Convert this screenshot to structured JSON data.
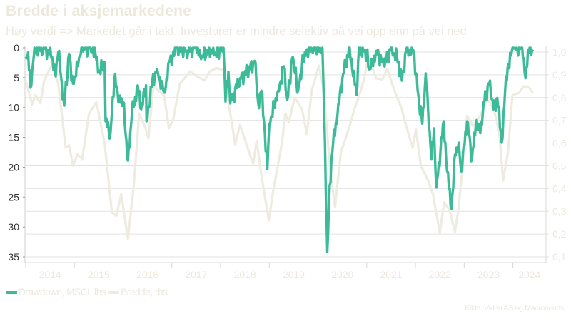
{
  "title": "Bredde i aksjemarkedene",
  "subtitle": "Høy verdi => Markedet går i takt. Investorer er mindre selektiv på vei opp enn på vei ned",
  "source": "Kilde: Viden AS og Macrobonds",
  "colors": {
    "drawdown": "#3dba98",
    "breadth": "#eeebe0",
    "text_light": "#ece8dc",
    "grid": "#e2e2e2"
  },
  "chart_data": {
    "type": "line",
    "title": "Bredde i aksjemarkedene",
    "xlim": [
      2014.0,
      2024.68
    ],
    "x_tick_labels": [
      "2014",
      "2015",
      "2016",
      "2017",
      "2018",
      "2019",
      "2020",
      "2021",
      "2022",
      "2023",
      "2024"
    ],
    "left_axis": {
      "label": "Drawdown, MSCI, lhs",
      "ylim": [
        0,
        35
      ],
      "inverted": true,
      "ticks": [
        "0",
        "5",
        "10",
        "15",
        "20",
        "25",
        "30",
        "35"
      ]
    },
    "right_axis": {
      "label": "Bredde, rhs",
      "ylim": [
        0.1,
        1.0
      ],
      "ticks": [
        "1,0",
        "0,9",
        "0,8",
        "0,7",
        "0,6",
        "0,5",
        "0,4",
        "0,3",
        "0,2",
        "0,1"
      ]
    },
    "grid": true,
    "legend": {
      "placement": "bottom-left",
      "entries": [
        "Drawdown, MSCI, lhs",
        "Bredde, rhs"
      ]
    },
    "series": [
      {
        "name": "Drawdown, MSCI, lhs",
        "axis": "left",
        "points": [
          [
            2014.0,
            1.5
          ],
          [
            2014.05,
            0.8
          ],
          [
            2014.1,
            6.7
          ],
          [
            2014.18,
            0
          ],
          [
            2014.3,
            0.5
          ],
          [
            2014.4,
            0
          ],
          [
            2014.54,
            1.5
          ],
          [
            2014.6,
            4.3
          ],
          [
            2014.67,
            0.7
          ],
          [
            2014.79,
            9.7
          ],
          [
            2014.89,
            1
          ],
          [
            2014.97,
            6
          ],
          [
            2015.08,
            2.7
          ],
          [
            2015.16,
            0
          ],
          [
            2015.38,
            0
          ],
          [
            2015.52,
            4
          ],
          [
            2015.62,
            2.4
          ],
          [
            2015.64,
            12.3
          ],
          [
            2015.74,
            14.3
          ],
          [
            2015.82,
            5.1
          ],
          [
            2015.92,
            8.4
          ],
          [
            2016.0,
            9.1
          ],
          [
            2016.1,
            18.9
          ],
          [
            2016.18,
            11.1
          ],
          [
            2016.3,
            6.3
          ],
          [
            2016.37,
            10.3
          ],
          [
            2016.47,
            6.3
          ],
          [
            2016.48,
            12.3
          ],
          [
            2016.6,
            5.5
          ],
          [
            2016.7,
            3.6
          ],
          [
            2016.84,
            7.5
          ],
          [
            2016.96,
            2.2
          ],
          [
            2017.1,
            0
          ],
          [
            2017.3,
            0.5
          ],
          [
            2017.5,
            0
          ],
          [
            2017.6,
            1.9
          ],
          [
            2017.75,
            0.3
          ],
          [
            2017.9,
            0.8
          ],
          [
            2018.06,
            0
          ],
          [
            2018.1,
            9
          ],
          [
            2018.16,
            4
          ],
          [
            2018.2,
            9.3
          ],
          [
            2018.4,
            5.1
          ],
          [
            2018.6,
            3.6
          ],
          [
            2018.7,
            2.2
          ],
          [
            2018.77,
            9.1
          ],
          [
            2018.84,
            7.2
          ],
          [
            2018.89,
            12.3
          ],
          [
            2018.96,
            20.3
          ],
          [
            2019.0,
            12.7
          ],
          [
            2019.18,
            7.2
          ],
          [
            2019.3,
            3.1
          ],
          [
            2019.37,
            8.7
          ],
          [
            2019.48,
            1.5
          ],
          [
            2019.59,
            7.2
          ],
          [
            2019.7,
            1.9
          ],
          [
            2019.81,
            0
          ],
          [
            2020.09,
            0
          ],
          [
            2020.13,
            12
          ],
          [
            2020.19,
            34.2
          ],
          [
            2020.24,
            23
          ],
          [
            2020.31,
            15.9
          ],
          [
            2020.4,
            11.1
          ],
          [
            2020.5,
            5.1
          ],
          [
            2020.65,
            0
          ],
          [
            2020.79,
            7.9
          ],
          [
            2020.84,
            0
          ],
          [
            2021.0,
            1
          ],
          [
            2021.06,
            3.6
          ],
          [
            2021.2,
            0.5
          ],
          [
            2021.35,
            3
          ],
          [
            2021.5,
            0
          ],
          [
            2021.62,
            1.5
          ],
          [
            2021.72,
            5.5
          ],
          [
            2021.82,
            0
          ],
          [
            2021.96,
            0.5
          ],
          [
            2022.06,
            8
          ],
          [
            2022.14,
            12.7
          ],
          [
            2022.21,
            4.3
          ],
          [
            2022.29,
            13.9
          ],
          [
            2022.33,
            18.6
          ],
          [
            2022.38,
            13.5
          ],
          [
            2022.43,
            23.4
          ],
          [
            2022.58,
            12.3
          ],
          [
            2022.65,
            20.7
          ],
          [
            2022.74,
            27
          ],
          [
            2022.81,
            17.9
          ],
          [
            2022.89,
            15.9
          ],
          [
            2022.94,
            20.7
          ],
          [
            2023.06,
            12.3
          ],
          [
            2023.16,
            18.6
          ],
          [
            2023.24,
            12.7
          ],
          [
            2023.33,
            14.3
          ],
          [
            2023.4,
            9.1
          ],
          [
            2023.53,
            5.5
          ],
          [
            2023.6,
            10.3
          ],
          [
            2023.68,
            8.4
          ],
          [
            2023.77,
            15.9
          ],
          [
            2023.84,
            7.2
          ],
          [
            2023.91,
            2.7
          ],
          [
            2024.01,
            0
          ],
          [
            2024.19,
            0
          ],
          [
            2024.26,
            5.1
          ],
          [
            2024.31,
            0.3
          ],
          [
            2024.41,
            0.3
          ]
        ]
      },
      {
        "name": "Bredde, rhs",
        "axis": "right",
        "points": [
          [
            2014.0,
            0.875
          ],
          [
            2014.13,
            0.77
          ],
          [
            2014.2,
            0.81
          ],
          [
            2014.3,
            0.775
          ],
          [
            2014.38,
            0.875
          ],
          [
            2014.47,
            0.915
          ],
          [
            2014.54,
            0.945
          ],
          [
            2014.67,
            0.86
          ],
          [
            2014.82,
            0.58
          ],
          [
            2014.89,
            0.59
          ],
          [
            2014.97,
            0.5
          ],
          [
            2015.06,
            0.55
          ],
          [
            2015.16,
            0.53
          ],
          [
            2015.3,
            0.73
          ],
          [
            2015.45,
            0.78
          ],
          [
            2015.62,
            0.6
          ],
          [
            2015.77,
            0.295
          ],
          [
            2015.86,
            0.28
          ],
          [
            2015.96,
            0.375
          ],
          [
            2016.1,
            0.18
          ],
          [
            2016.22,
            0.415
          ],
          [
            2016.33,
            0.73
          ],
          [
            2016.45,
            0.67
          ],
          [
            2016.52,
            0.62
          ],
          [
            2016.62,
            0.85
          ],
          [
            2016.84,
            0.81
          ],
          [
            2016.94,
            0.665
          ],
          [
            2017.03,
            0.705
          ],
          [
            2017.16,
            0.86
          ],
          [
            2017.38,
            0.915
          ],
          [
            2017.5,
            0.895
          ],
          [
            2017.67,
            0.875
          ],
          [
            2017.78,
            0.915
          ],
          [
            2017.91,
            0.93
          ],
          [
            2018.06,
            0.92
          ],
          [
            2018.16,
            0.78
          ],
          [
            2018.3,
            0.595
          ],
          [
            2018.4,
            0.68
          ],
          [
            2018.6,
            0.55
          ],
          [
            2018.67,
            0.51
          ],
          [
            2018.74,
            0.61
          ],
          [
            2018.84,
            0.455
          ],
          [
            2018.99,
            0.26
          ],
          [
            2019.08,
            0.39
          ],
          [
            2019.26,
            0.6
          ],
          [
            2019.33,
            0.73
          ],
          [
            2019.4,
            0.69
          ],
          [
            2019.52,
            0.8
          ],
          [
            2019.67,
            0.75
          ],
          [
            2019.77,
            0.64
          ],
          [
            2019.87,
            0.83
          ],
          [
            2020.02,
            0.94
          ],
          [
            2020.12,
            0.83
          ],
          [
            2020.25,
            0.48
          ],
          [
            2020.35,
            0.32
          ],
          [
            2020.47,
            0.56
          ],
          [
            2020.62,
            0.655
          ],
          [
            2020.75,
            0.75
          ],
          [
            2020.84,
            0.805
          ],
          [
            2020.94,
            0.875
          ],
          [
            2021.01,
            0.955
          ],
          [
            2021.04,
            0.98
          ],
          [
            2021.19,
            0.885
          ],
          [
            2021.32,
            0.88
          ],
          [
            2021.42,
            0.925
          ],
          [
            2021.57,
            0.83
          ],
          [
            2021.72,
            0.75
          ],
          [
            2021.79,
            0.69
          ],
          [
            2021.94,
            0.58
          ],
          [
            2022.01,
            0.66
          ],
          [
            2022.11,
            0.5
          ],
          [
            2022.26,
            0.435
          ],
          [
            2022.36,
            0.375
          ],
          [
            2022.5,
            0.205
          ],
          [
            2022.59,
            0.34
          ],
          [
            2022.7,
            0.305
          ],
          [
            2022.81,
            0.21
          ],
          [
            2022.89,
            0.32
          ],
          [
            2022.96,
            0.485
          ],
          [
            2023.06,
            0.72
          ],
          [
            2023.18,
            0.675
          ],
          [
            2023.33,
            0.72
          ],
          [
            2023.47,
            0.8
          ],
          [
            2023.62,
            0.74
          ],
          [
            2023.72,
            0.645
          ],
          [
            2023.8,
            0.435
          ],
          [
            2023.9,
            0.56
          ],
          [
            2023.99,
            0.81
          ],
          [
            2024.12,
            0.82
          ],
          [
            2024.23,
            0.85
          ],
          [
            2024.33,
            0.845
          ],
          [
            2024.41,
            0.82
          ]
        ]
      }
    ]
  }
}
